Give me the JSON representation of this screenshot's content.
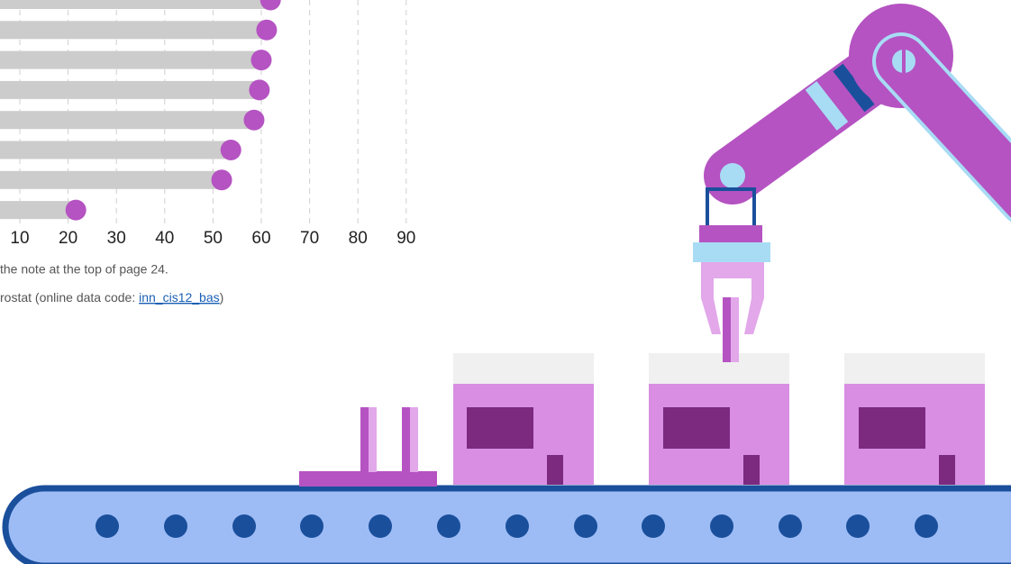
{
  "chart_data": {
    "type": "lollipop",
    "categories": [
      null,
      null,
      null,
      null,
      null,
      null,
      null,
      null
    ],
    "values": [
      61.9,
      61.1,
      60,
      59.6,
      58.5,
      53.7,
      51.8,
      21.6
    ],
    "bar_color": "#cccccc",
    "dot_color": "#b553c2",
    "xlim": [
      0,
      90
    ],
    "xticks": [
      10,
      20,
      30,
      40,
      50,
      60,
      70,
      80,
      90
    ],
    "grid": true,
    "notes": [
      "the note at the top of page 24."
    ],
    "source": {
      "text": "rostat (online data code: ",
      "link": "inn_cis12_bas",
      "end": ")"
    }
  }
}
